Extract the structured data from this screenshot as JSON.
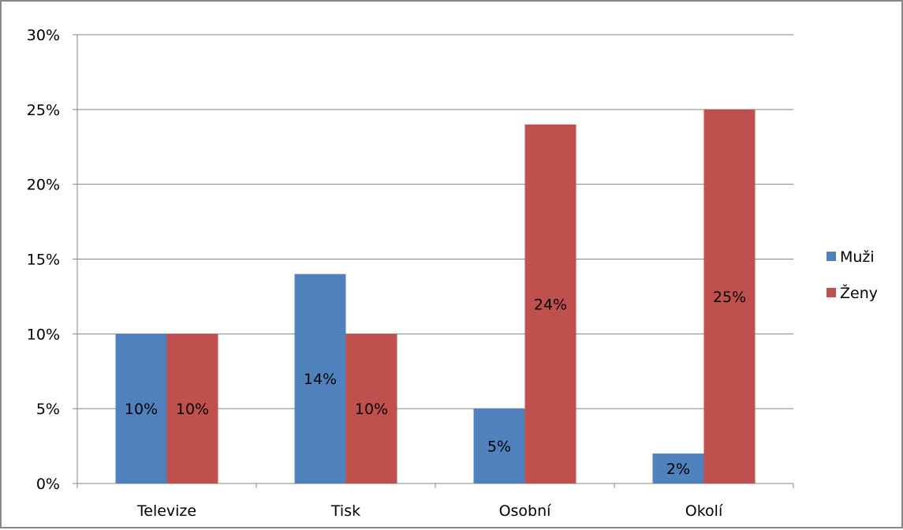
{
  "chart_data": {
    "type": "bar",
    "categories": [
      "Televize",
      "Tisk",
      "Osobní",
      "Okolí"
    ],
    "series": [
      {
        "name": "Muži",
        "values": [
          10,
          14,
          5,
          2
        ],
        "labels": [
          "10%",
          "14%",
          "5%",
          "2%"
        ],
        "color": "#4F81BD"
      },
      {
        "name": "Ženy",
        "values": [
          10,
          10,
          24,
          25
        ],
        "labels": [
          "10%",
          "10%",
          "24%",
          "25%"
        ],
        "color": "#C0504D"
      }
    ],
    "ylim": [
      0,
      30
    ],
    "yticks": [
      0,
      5,
      10,
      15,
      20,
      25,
      30
    ],
    "ytick_labels": [
      "0%",
      "5%",
      "10%",
      "15%",
      "20%",
      "25%",
      "30%"
    ],
    "grid": true,
    "legend": "right",
    "title": "",
    "xlabel": "",
    "ylabel": ""
  }
}
